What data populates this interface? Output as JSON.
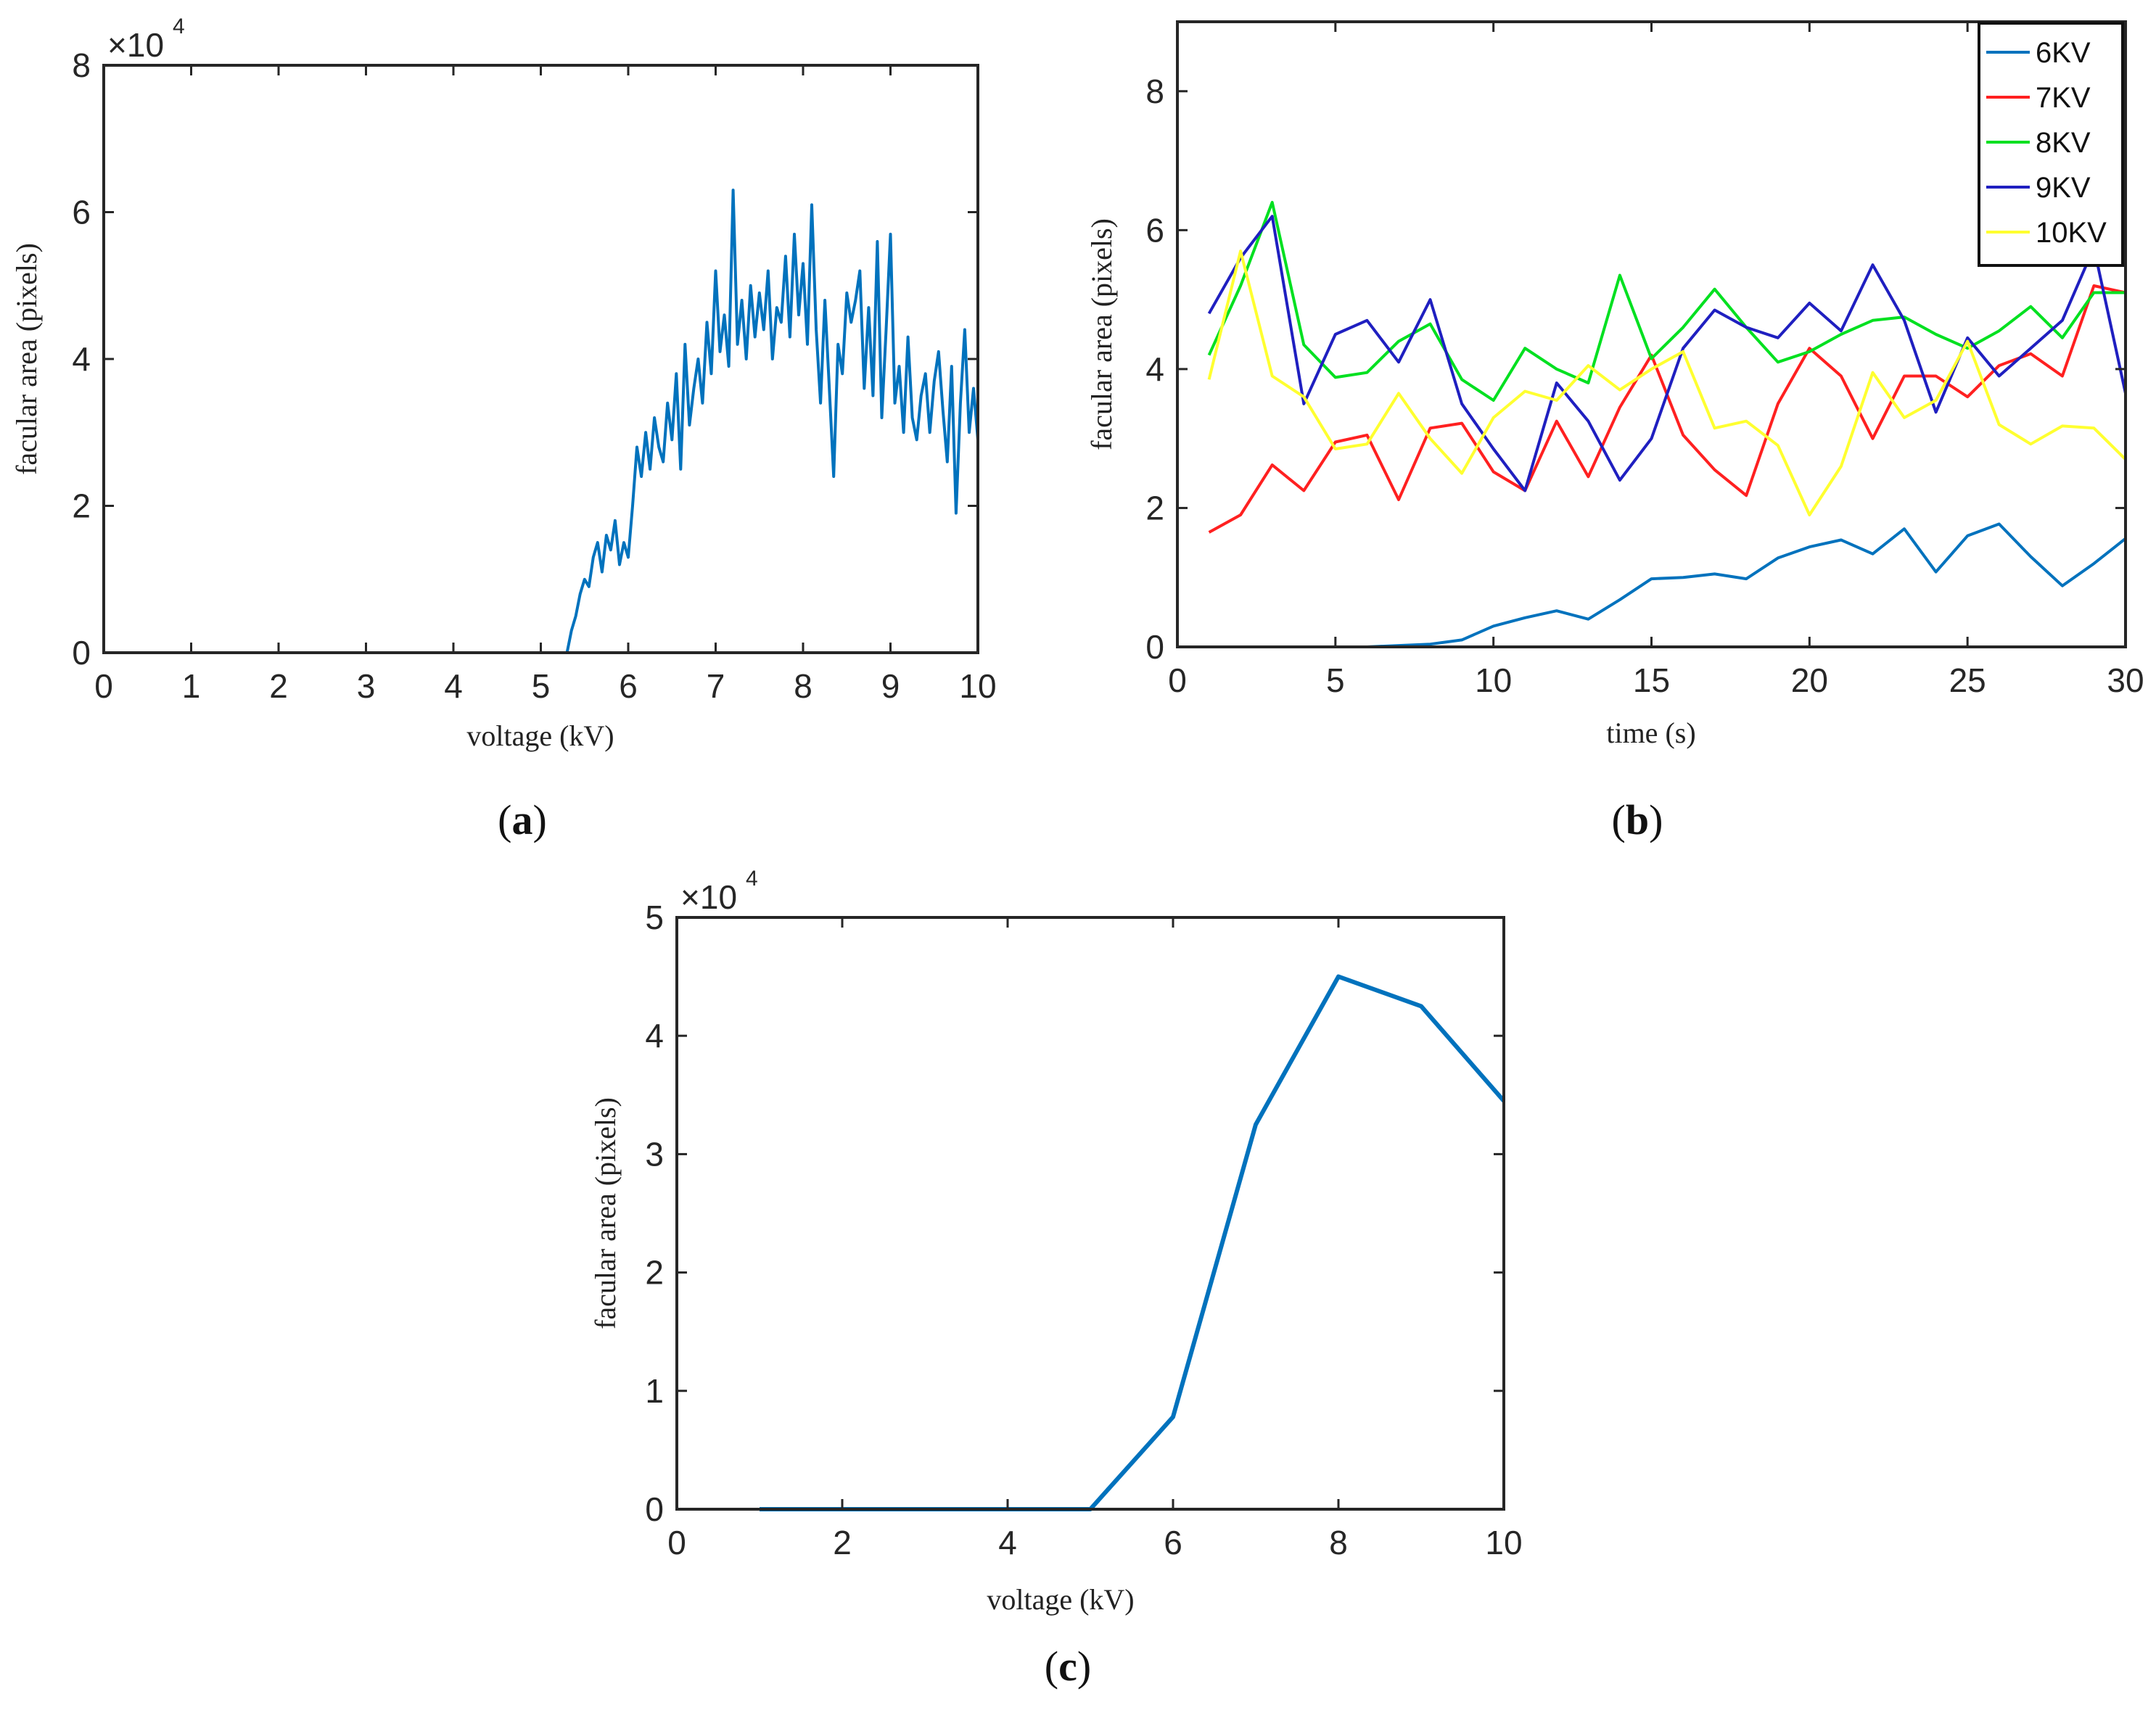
{
  "chart_data": [
    {
      "id": "a",
      "type": "line",
      "panel_label": "a",
      "xlabel": "voltage (kV)",
      "ylabel": "facular area (pixels)",
      "exponent_label": "×10",
      "exponent_power": "4",
      "xlim": [
        0,
        10
      ],
      "ylim": [
        0,
        8
      ],
      "xticks": [
        "0",
        "1",
        "2",
        "3",
        "4",
        "5",
        "6",
        "7",
        "8",
        "9",
        "10"
      ],
      "yticks": [
        "0",
        "2",
        "4",
        "6",
        "8"
      ],
      "color": "#0072bd",
      "series": [
        {
          "name": "facular area",
          "x": [
            0,
            5.0,
            5.2,
            5.3,
            5.35,
            5.4,
            5.45,
            5.5,
            5.55,
            5.6,
            5.65,
            5.7,
            5.75,
            5.8,
            5.85,
            5.9,
            5.95,
            6.0,
            6.05,
            6.1,
            6.15,
            6.2,
            6.25,
            6.3,
            6.35,
            6.4,
            6.45,
            6.5,
            6.55,
            6.6,
            6.65,
            6.7,
            6.75,
            6.8,
            6.85,
            6.9,
            6.95,
            7.0,
            7.05,
            7.1,
            7.15,
            7.2,
            7.25,
            7.3,
            7.35,
            7.4,
            7.45,
            7.5,
            7.55,
            7.6,
            7.65,
            7.7,
            7.75,
            7.8,
            7.85,
            7.9,
            7.95,
            8.0,
            8.05,
            8.1,
            8.15,
            8.2,
            8.25,
            8.3,
            8.35,
            8.4,
            8.45,
            8.5,
            8.55,
            8.6,
            8.65,
            8.7,
            8.75,
            8.8,
            8.85,
            8.9,
            8.95,
            9.0,
            9.05,
            9.1,
            9.15,
            9.2,
            9.25,
            9.3,
            9.35,
            9.4,
            9.45,
            9.5,
            9.55,
            9.6,
            9.65,
            9.7,
            9.75,
            9.8,
            9.85,
            9.9,
            9.95,
            10.0
          ],
          "values": [
            0,
            0,
            0,
            0.0,
            0.3,
            0.5,
            0.8,
            1.0,
            0.9,
            1.3,
            1.5,
            1.1,
            1.6,
            1.4,
            1.8,
            1.2,
            1.5,
            1.3,
            2.0,
            2.8,
            2.4,
            3.0,
            2.5,
            3.2,
            2.8,
            2.6,
            3.4,
            2.9,
            3.8,
            2.5,
            4.2,
            3.1,
            3.6,
            4.0,
            3.4,
            4.5,
            3.8,
            5.2,
            4.1,
            4.6,
            3.9,
            6.3,
            4.2,
            4.8,
            4.0,
            5.0,
            4.3,
            4.9,
            4.4,
            5.2,
            4.0,
            4.7,
            4.5,
            5.4,
            4.3,
            5.7,
            4.6,
            5.3,
            4.2,
            6.1,
            4.4,
            3.4,
            4.8,
            3.6,
            2.4,
            4.2,
            3.8,
            4.9,
            4.5,
            4.8,
            5.2,
            3.6,
            4.7,
            3.5,
            5.6,
            3.2,
            4.4,
            5.7,
            3.4,
            3.9,
            3.0,
            4.3,
            3.2,
            2.9,
            3.5,
            3.8,
            3.0,
            3.7,
            4.1,
            3.3,
            2.6,
            3.9,
            1.9,
            3.4,
            4.4,
            3.0,
            3.6,
            2.9
          ]
        }
      ]
    },
    {
      "id": "b",
      "type": "line",
      "panel_label": "b",
      "xlabel": "time (s)",
      "ylabel": "facular area (pixels)",
      "xlim": [
        0,
        30
      ],
      "ylim": [
        0,
        9
      ],
      "xticks": [
        "0",
        "5",
        "10",
        "15",
        "20",
        "25",
        "30"
      ],
      "yticks": [
        "0",
        "2",
        "4",
        "6",
        "8"
      ],
      "legend_position": "top-right",
      "x": [
        1,
        2,
        3,
        4,
        5,
        6,
        7,
        8,
        9,
        10,
        11,
        12,
        13,
        14,
        15,
        16,
        17,
        18,
        19,
        20,
        21,
        22,
        23,
        24,
        25,
        26,
        27,
        28,
        29,
        30
      ],
      "series": [
        {
          "name": "6KV",
          "color": "#0072bd",
          "values": [
            0,
            0,
            0,
            0,
            0,
            0,
            0.02,
            0.04,
            0.1,
            0.3,
            0.42,
            0.52,
            0.4,
            0.68,
            0.98,
            1.0,
            1.05,
            0.98,
            1.28,
            1.44,
            1.54,
            1.34,
            1.7,
            1.08,
            1.6,
            1.77,
            1.3,
            0.88,
            1.2,
            1.56
          ]
        },
        {
          "name": "7KV",
          "color": "#ff2020",
          "values": [
            1.65,
            1.9,
            2.62,
            2.25,
            2.95,
            3.05,
            2.12,
            3.15,
            3.22,
            2.52,
            2.25,
            3.25,
            2.45,
            3.45,
            4.2,
            3.05,
            2.55,
            2.18,
            3.5,
            4.3,
            3.9,
            3.0,
            3.9,
            3.9,
            3.6,
            4.05,
            4.22,
            3.9,
            5.2,
            5.1
          ]
        },
        {
          "name": "8KV",
          "color": "#00e020",
          "values": [
            4.2,
            5.2,
            6.4,
            4.35,
            3.88,
            3.95,
            4.4,
            4.65,
            3.85,
            3.55,
            4.3,
            4.0,
            3.8,
            5.35,
            4.15,
            4.6,
            5.15,
            4.6,
            4.1,
            4.25,
            4.5,
            4.7,
            4.75,
            4.5,
            4.3,
            4.55,
            4.9,
            4.45,
            5.1,
            5.1
          ]
        },
        {
          "name": "9KV",
          "color": "#1f1fc0",
          "values": [
            4.8,
            5.6,
            6.2,
            3.5,
            4.5,
            4.7,
            4.1,
            5.0,
            3.5,
            2.85,
            2.25,
            3.8,
            3.25,
            2.4,
            3.0,
            4.3,
            4.85,
            4.6,
            4.45,
            4.95,
            4.55,
            5.5,
            4.7,
            3.38,
            4.45,
            3.9,
            4.3,
            4.7,
            5.75,
            3.65
          ]
        },
        {
          "name": "10KV",
          "color": "#ffff30",
          "values": [
            3.85,
            5.7,
            3.9,
            3.6,
            2.85,
            2.92,
            3.65,
            3.0,
            2.5,
            3.3,
            3.68,
            3.55,
            4.05,
            3.7,
            4.0,
            4.25,
            3.15,
            3.25,
            2.9,
            1.9,
            2.6,
            3.95,
            3.3,
            3.55,
            4.4,
            3.2,
            2.92,
            3.18,
            3.15,
            2.7
          ]
        }
      ]
    },
    {
      "id": "c",
      "type": "line",
      "panel_label": "c",
      "xlabel": "voltage (kV)",
      "ylabel": "facular area (pixels)",
      "exponent_label": "×10",
      "exponent_power": "4",
      "xlim": [
        0,
        10
      ],
      "ylim": [
        0,
        5
      ],
      "xticks": [
        "0",
        "2",
        "4",
        "6",
        "8",
        "10"
      ],
      "yticks": [
        "0",
        "1",
        "2",
        "3",
        "4",
        "5"
      ],
      "color": "#0072bd",
      "series": [
        {
          "name": "facular area",
          "x": [
            1,
            2,
            3,
            4,
            5,
            6,
            7,
            8,
            9,
            10
          ],
          "values": [
            0,
            0,
            0,
            0,
            0,
            0.78,
            3.25,
            4.5,
            4.25,
            3.45
          ]
        }
      ]
    }
  ]
}
